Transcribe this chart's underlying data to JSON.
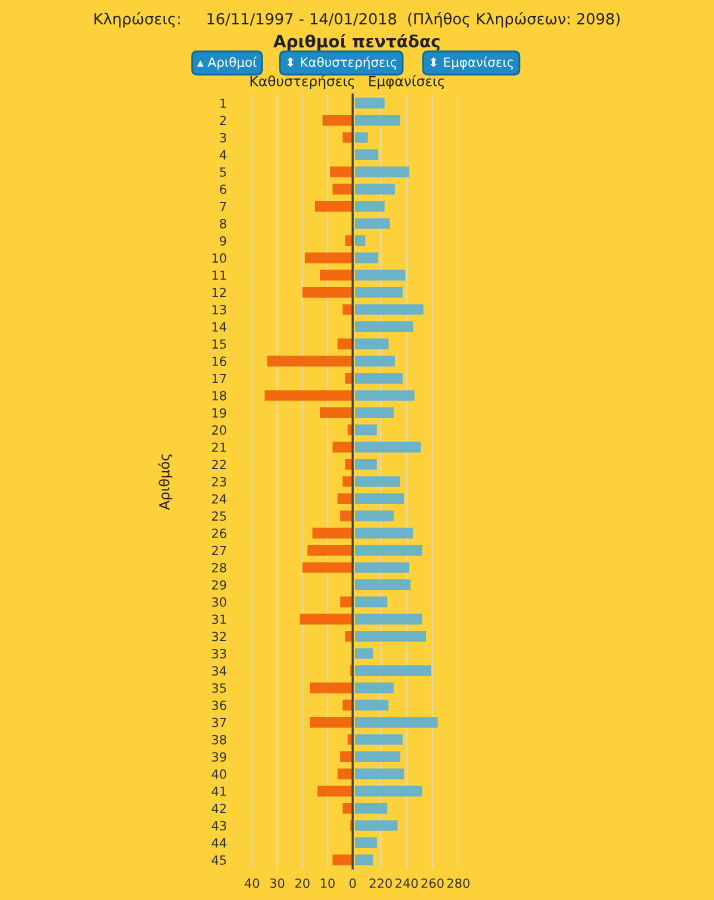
{
  "chart_data": [
    {
      "type": "bar",
      "orientation": "horizontal",
      "title": "Αριθμοί πεντάδας",
      "xlabel": "Καθυστερήσεις",
      "ylabel": "Αριθμός",
      "annotations": [
        "Κληρώσεις:     16/11/1997 - 14/01/2018  (Πλήθος Κληρώσεων: 2098)",
        "▴ Αριθμοί",
        "⬍ Καθυστερήσεις",
        "⬍ Εμφανίσεις"
      ],
      "categories": [
        "1",
        "2",
        "3",
        "4",
        "5",
        "6",
        "7",
        "8",
        "9",
        "10",
        "11",
        "12",
        "13",
        "14",
        "15",
        "16",
        "17",
        "18",
        "19",
        "20",
        "21",
        "22",
        "23",
        "24",
        "25",
        "26",
        "27",
        "28",
        "29",
        "30",
        "31",
        "32",
        "33",
        "34",
        "35",
        "36",
        "37",
        "38",
        "39",
        "40",
        "41",
        "42",
        "43",
        "44",
        "45"
      ],
      "values": [
        null,
        12,
        4,
        null,
        9,
        8,
        15,
        null,
        3,
        19,
        13,
        20,
        4,
        null,
        6,
        34,
        3,
        35,
        13,
        2,
        8,
        3,
        4,
        6,
        5,
        16,
        18,
        20,
        null,
        5,
        21,
        3,
        null,
        1,
        17,
        4,
        17,
        2,
        5,
        6,
        14,
        4,
        1,
        null,
        8
      ],
      "color": "#f26a10",
      "xlim": [
        40,
        0
      ],
      "xticks": [
        40,
        30,
        20,
        10,
        0
      ],
      "grid": "x"
    },
    {
      "type": "bar",
      "orientation": "horizontal",
      "xlabel": "Εμφανίσεις",
      "tick_labels": "x",
      "categories": [
        "1",
        "2",
        "3",
        "4",
        "5",
        "6",
        "7",
        "8",
        "9",
        "10",
        "11",
        "12",
        "13",
        "14",
        "15",
        "16",
        "17",
        "18",
        "19",
        "20",
        "21",
        "22",
        "23",
        "24",
        "25",
        "26",
        "27",
        "28",
        "29",
        "30",
        "31",
        "32",
        "33",
        "34",
        "35",
        "36",
        "37",
        "38",
        "39",
        "40",
        "41",
        "42",
        "43",
        "44",
        "45"
      ],
      "values": [
        223,
        235,
        210,
        218,
        242,
        231,
        223,
        227,
        208,
        218,
        239,
        237,
        253,
        245,
        226,
        231,
        237,
        246,
        230,
        217,
        251,
        217,
        235,
        238,
        230,
        245,
        252,
        242,
        243,
        225,
        252,
        255,
        214,
        259,
        230,
        226,
        264,
        237,
        235,
        238,
        252,
        225,
        233,
        217,
        214
      ],
      "color": "#6db3c8",
      "xlim": [
        200,
        280
      ],
      "xticks": [
        {
          "value": 200,
          "label": null
        },
        220,
        240,
        260,
        280
      ],
      "grid": "x"
    }
  ]
}
